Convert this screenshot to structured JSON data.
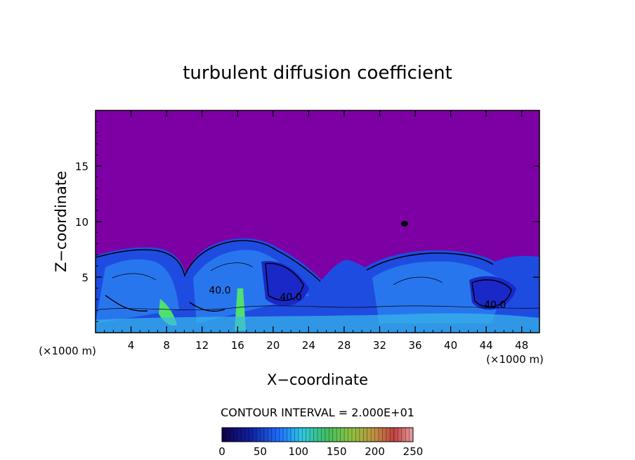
{
  "chart_data": {
    "type": "heatmap",
    "title": "turbulent diffusion coefficient",
    "xlabel": "X−coordinate",
    "ylabel": "Z−coordinate",
    "x_unit_left": "(×1000 m)",
    "x_unit_right": "(×1000 m)",
    "xlim": [
      0,
      50
    ],
    "ylim": [
      0,
      20
    ],
    "x_ticks": [
      4,
      8,
      12,
      16,
      20,
      24,
      28,
      32,
      36,
      40,
      44,
      48
    ],
    "y_ticks": [
      5,
      10,
      15
    ],
    "contour_interval_label": "CONTOUR INTERVAL = 2.000E+01",
    "contour_labels": [
      {
        "text": "40.0",
        "x": 14.0,
        "z": 3.5
      },
      {
        "text": "40.0",
        "x": 22.0,
        "z": 2.9
      },
      {
        "text": "40.0",
        "x": 45.0,
        "z": 2.2
      }
    ],
    "colorbar": {
      "min": 0,
      "max": 250,
      "ticks": [
        0,
        50,
        100,
        150,
        200,
        250
      ],
      "colors": [
        "#1a0060",
        "#1030c0",
        "#1e90ff",
        "#40e0d0",
        "#40d060",
        "#a0d040",
        "#e0a040",
        "#d04040",
        "#e08080"
      ]
    },
    "background_value_color": "#7d00a5",
    "gridlines": false,
    "legend": "bottom"
  }
}
